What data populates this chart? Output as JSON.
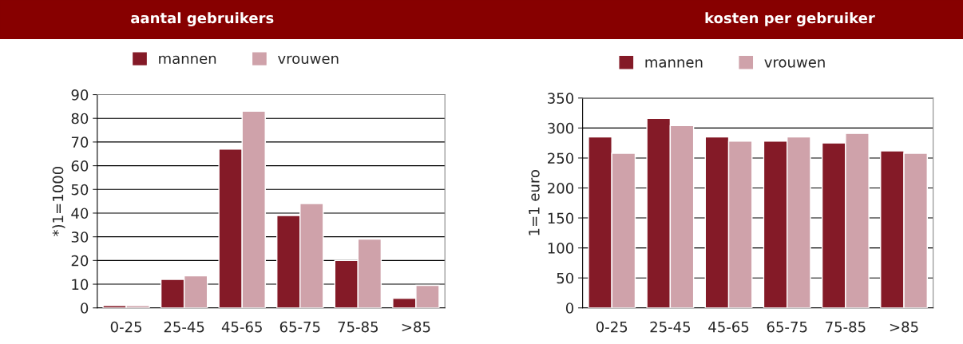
{
  "chart_data": [
    {
      "type": "bar",
      "title": "aantal gebruikers",
      "ylabel": "*)1=1000",
      "categories": [
        "0-25",
        "25-45",
        "45-65",
        "65-75",
        "75-85",
        ">85"
      ],
      "series": [
        {
          "name": "mannen",
          "color": "#841a27",
          "values": [
            1,
            12,
            67,
            39,
            20,
            4
          ]
        },
        {
          "name": "vrouwen",
          "color": "#cfa2aa",
          "values": [
            1,
            13.5,
            83,
            44,
            29,
            9.5
          ]
        }
      ],
      "ylim": [
        0,
        90
      ],
      "yticks": [
        0,
        10,
        20,
        30,
        40,
        50,
        60,
        70,
        80,
        90
      ],
      "grid": "y",
      "legend": "top"
    },
    {
      "type": "bar",
      "title": "kosten per gebruiker",
      "ylabel": "1=1 euro",
      "categories": [
        "0-25",
        "25-45",
        "45-65",
        "65-75",
        "75-85",
        ">85"
      ],
      "series": [
        {
          "name": "mannen",
          "color": "#841a27",
          "values": [
            285,
            316,
            285,
            278,
            275,
            262
          ]
        },
        {
          "name": "vrouwen",
          "color": "#cfa2aa",
          "values": [
            258,
            304,
            278,
            285,
            291,
            258
          ]
        }
      ],
      "ylim": [
        0,
        350
      ],
      "yticks": [
        0,
        50,
        100,
        150,
        200,
        250,
        300,
        350
      ],
      "grid": "y",
      "legend": "top"
    }
  ]
}
